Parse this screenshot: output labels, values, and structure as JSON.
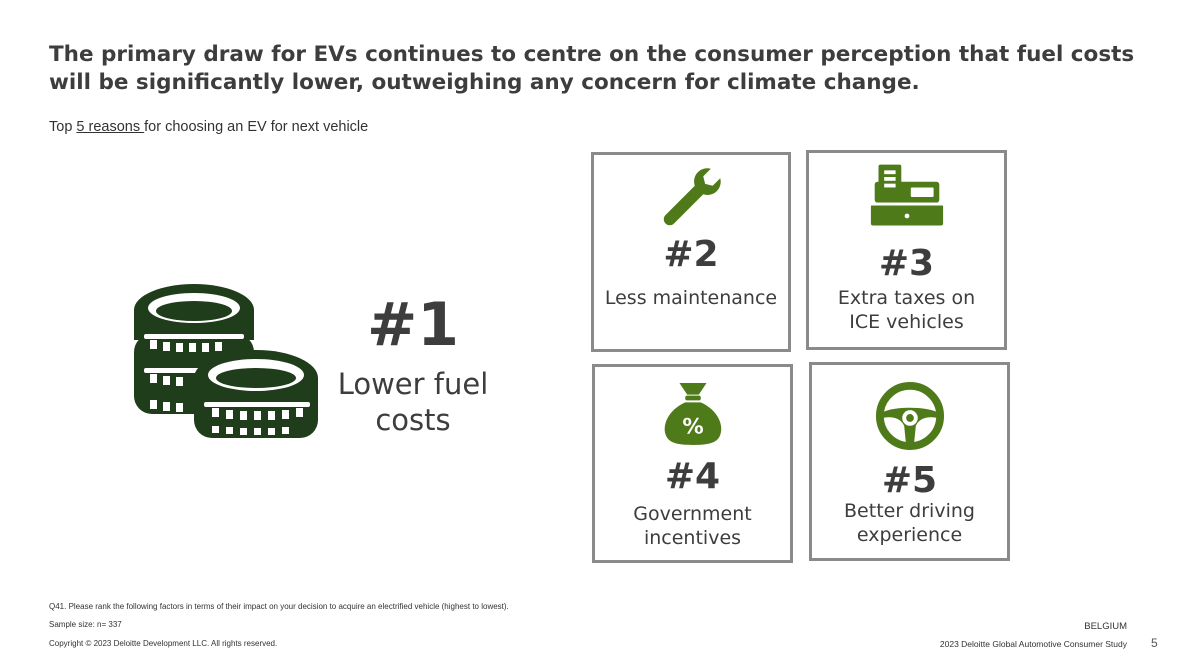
{
  "headline": "The primary draw for EVs continues to centre on the consumer perception that fuel costs will be significantly lower, outweighing any concern for climate change.",
  "subtitle": {
    "prefix": "Top ",
    "link": "5 reasons ",
    "suffix": "for choosing an EV for next vehicle"
  },
  "reasons": [
    {
      "rank": "#1",
      "label_lines": [
        "Lower fuel",
        "costs"
      ],
      "icon": "coins-stack-icon"
    },
    {
      "rank": "#2",
      "label_lines": [
        "Less maintenance"
      ],
      "icon": "wrench-icon"
    },
    {
      "rank": "#3",
      "label_lines": [
        "Extra taxes on",
        "ICE vehicles"
      ],
      "icon": "cash-register-icon"
    },
    {
      "rank": "#4",
      "label_lines": [
        "Government",
        "incentives"
      ],
      "icon": "money-bag-percent-icon"
    },
    {
      "rank": "#5",
      "label_lines": [
        "Better driving",
        "experience"
      ],
      "icon": "steering-wheel-icon"
    }
  ],
  "colors": {
    "dark_green": "#1f3d1a",
    "olive_green": "#4f7a1a",
    "tile_border": "#8a8a8a",
    "text": "#3d3d3d"
  },
  "footer": {
    "question": "Q41. Please rank the following factors in terms of their impact on your decision to acquire an electrified vehicle (highest to lowest).",
    "sample": "Sample size: n= 337",
    "copyright": "Copyright © 2023 Deloitte Development LLC. All rights reserved.",
    "country": "BELGIUM",
    "study": "2023 Deloitte Global Automotive Consumer Study",
    "page": "5"
  }
}
